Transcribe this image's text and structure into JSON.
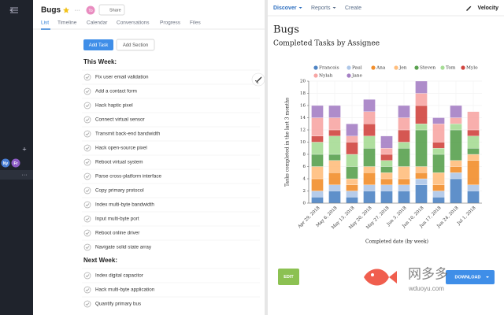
{
  "sidebar": {
    "avatars": [
      "Ny",
      "Fr"
    ]
  },
  "project": {
    "title": "Bugs",
    "avatar": "To",
    "share": "Share",
    "tabs": [
      "List",
      "Timeline",
      "Calendar",
      "Conversations",
      "Progress",
      "Files"
    ],
    "add_task": "Add Task",
    "add_section": "Add Section",
    "sections": [
      {
        "heading": "This Week:",
        "tasks": [
          "Fix user email validation",
          "Add a contact form",
          "Hack haptic pixel",
          "Connect virtual sensor",
          "Transmit back-end bandwidth",
          "Hack open-source pixel",
          "Reboot virtual system",
          "Parse cross-platform interface",
          "Copy primary protocol",
          "Index multi-byte bandwidth",
          "Input multi-byte port",
          "Reboot online driver",
          "Navigate solid state array"
        ]
      },
      {
        "heading": "Next Week:",
        "tasks": [
          "Index digital capacitor",
          "Hack multi-byte application",
          "Quantify primary bus"
        ]
      }
    ]
  },
  "report": {
    "nav": [
      "Discover",
      "Reports",
      "Create"
    ],
    "brand": "Velocity",
    "edit": "EDIT",
    "download": "DOWNLOAD"
  },
  "watermark": {
    "name": "网多多",
    "url": "wduoyu.com"
  },
  "chart_data": {
    "type": "bar",
    "stacked": true,
    "title": "Bugs",
    "subtitle": "Completed Tasks by Assignee",
    "x_label": "Completed date (by week)",
    "y_label": "Tasks completed in the last 3 months",
    "categories": [
      "Apr 29, 2018",
      "May 6, 2018",
      "May 13, 2018",
      "May 20, 2018",
      "May 27, 2018",
      "Jun 3, 2018",
      "Jun 10, 2018",
      "Jun 17, 2018",
      "Jun 24, 2018",
      "Jul 1, 2018"
    ],
    "series": [
      {
        "name": "Francois",
        "color": "#4e84c4",
        "values": [
          1,
          2,
          1,
          2,
          2,
          2,
          3,
          1,
          4,
          2
        ]
      },
      {
        "name": "Paul",
        "color": "#aec7e8",
        "values": [
          1,
          1,
          1,
          1,
          1,
          1,
          1,
          1,
          1,
          1
        ]
      },
      {
        "name": "Ana",
        "color": "#f28e2b",
        "values": [
          2,
          2,
          1,
          2,
          1,
          1,
          1,
          1,
          1,
          4
        ]
      },
      {
        "name": "Jen",
        "color": "#ffbe7d",
        "values": [
          2,
          2,
          1,
          1,
          1,
          2,
          1,
          2,
          1,
          1
        ]
      },
      {
        "name": "Steven",
        "color": "#59a14f",
        "values": [
          2,
          1,
          2,
          3,
          1,
          3,
          6,
          3,
          5,
          1
        ]
      },
      {
        "name": "Tom",
        "color": "#a6dc95",
        "values": [
          2,
          3,
          2,
          2,
          1,
          1,
          1,
          1,
          1,
          2
        ]
      },
      {
        "name": "Mylo",
        "color": "#d0453f",
        "values": [
          1,
          1,
          2,
          2,
          1,
          2,
          3,
          1,
          0,
          1
        ]
      },
      {
        "name": "Nylah",
        "color": "#f7a6a4",
        "values": [
          3,
          2,
          1,
          2,
          1,
          2,
          2,
          3,
          1,
          3
        ]
      },
      {
        "name": "Jane",
        "color": "#a57fc4",
        "values": [
          2,
          2,
          2,
          2,
          2,
          2,
          2,
          1,
          2,
          0
        ]
      }
    ],
    "ylim": [
      0,
      20
    ],
    "yticks": [
      0,
      2,
      4,
      6,
      8,
      10,
      12,
      14,
      16,
      18,
      20
    ],
    "grid": true,
    "legend": "top"
  }
}
